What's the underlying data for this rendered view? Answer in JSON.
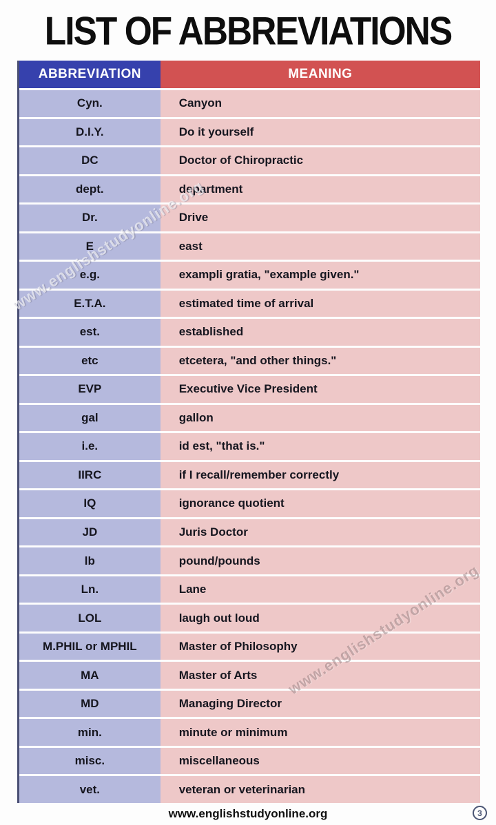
{
  "title": "LIST OF ABBREVIATIONS",
  "table": {
    "headers": {
      "abbreviation": "ABBREVIATION",
      "meaning": "MEANING"
    },
    "rows": [
      {
        "abbr": "Cyn.",
        "meaning": "Canyon"
      },
      {
        "abbr": "D.I.Y.",
        "meaning": "Do it yourself"
      },
      {
        "abbr": "DC",
        "meaning": "Doctor of Chiropractic"
      },
      {
        "abbr": "dept.",
        "meaning": "department"
      },
      {
        "abbr": "Dr.",
        "meaning": "Drive"
      },
      {
        "abbr": "E",
        "meaning": "east"
      },
      {
        "abbr": "e.g.",
        "meaning": "exampli gratia, \"example given.\""
      },
      {
        "abbr": "E.T.A.",
        "meaning": "estimated time of arrival"
      },
      {
        "abbr": "est.",
        "meaning": "established"
      },
      {
        "abbr": "etc",
        "meaning": "etcetera, \"and other things.\""
      },
      {
        "abbr": "EVP",
        "meaning": "Executive Vice President"
      },
      {
        "abbr": "gal",
        "meaning": "gallon"
      },
      {
        "abbr": "i.e.",
        "meaning": "id est, \"that is.\""
      },
      {
        "abbr": "IIRC",
        "meaning": "if I recall/remember correctly"
      },
      {
        "abbr": "IQ",
        "meaning": "ignorance quotient"
      },
      {
        "abbr": "JD",
        "meaning": "Juris Doctor"
      },
      {
        "abbr": "lb",
        "meaning": "pound/pounds"
      },
      {
        "abbr": "Ln.",
        "meaning": "Lane"
      },
      {
        "abbr": "LOL",
        "meaning": "laugh out loud"
      },
      {
        "abbr": "M.PHIL or MPHIL",
        "meaning": "Master of Philosophy"
      },
      {
        "abbr": "MA",
        "meaning": "Master of Arts"
      },
      {
        "abbr": "MD",
        "meaning": "Managing Director"
      },
      {
        "abbr": "min.",
        "meaning": "minute or minimum"
      },
      {
        "abbr": "misc.",
        "meaning": "miscellaneous"
      },
      {
        "abbr": "vet.",
        "meaning": "veteran or veterinarian"
      }
    ]
  },
  "watermarks": [
    {
      "text": "www.englishstudyonline.org"
    },
    {
      "text": "www.englishstudyonline.org"
    }
  ],
  "footer": {
    "site": "www.englishstudyonline.org",
    "page_number": "3"
  },
  "colors": {
    "header_blue": "#3641ad",
    "header_red": "#d25252",
    "abbreviation_cell": "#b5b9dd",
    "meaning_cell": "#eec8c8",
    "table_left_border": "#4a4f74",
    "page_badge": "#4a5574",
    "title_text": "#0e0e0e",
    "row_text": "#16161f"
  }
}
